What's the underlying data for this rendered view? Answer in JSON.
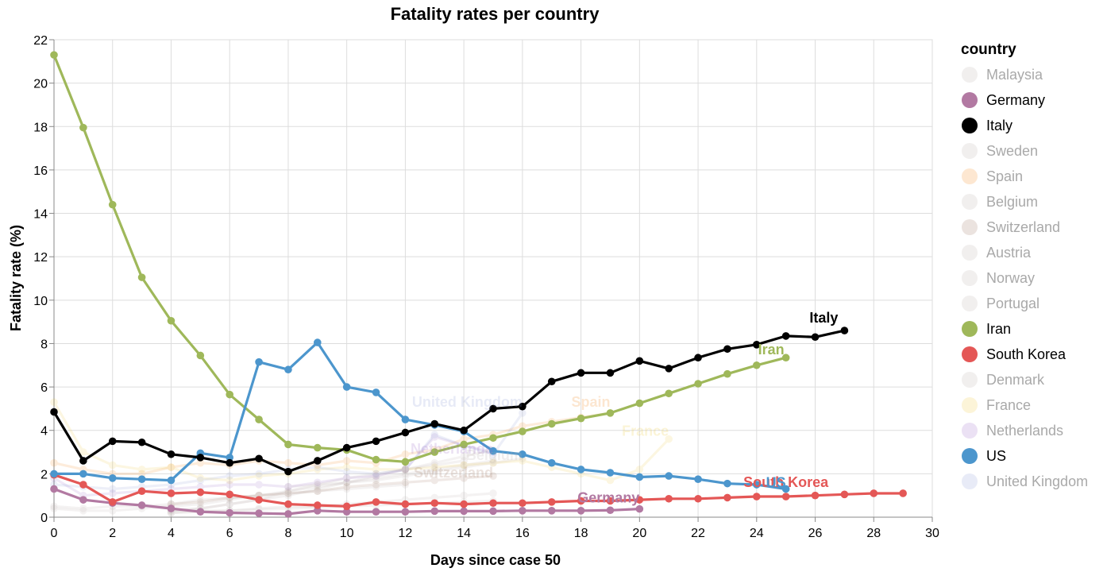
{
  "chart_data": {
    "type": "line",
    "title": "Fatality rates per country",
    "xlabel": "Days since case 50",
    "ylabel": "Fatality rate (%)",
    "xlim": [
      0,
      30
    ],
    "ylim": [
      0,
      22
    ],
    "x_ticks": [
      "0",
      "2",
      "4",
      "6",
      "8",
      "10",
      "12",
      "14",
      "16",
      "18",
      "20",
      "22",
      "24",
      "26",
      "28",
      "30"
    ],
    "y_ticks": [
      "0",
      "2",
      "4",
      "6",
      "8",
      "10",
      "12",
      "14",
      "16",
      "18",
      "20",
      "22"
    ],
    "grid": true,
    "legend_position": "right",
    "legend_title": "country",
    "series": [
      {
        "name": "Malaysia",
        "color": "#bab0ac",
        "highlighted": false,
        "x": [
          0,
          1,
          2,
          3,
          4,
          5,
          6,
          7,
          8,
          9,
          10,
          11,
          12
        ],
        "y": [
          0.5,
          0.4,
          0.5,
          0.5,
          0.6,
          0.8,
          0.9,
          1.0,
          1.1,
          1.2,
          1.3,
          1.4,
          1.5
        ]
      },
      {
        "name": "Germany",
        "color": "#b279a2",
        "highlighted": true,
        "label": "Germany",
        "x": [
          0,
          1,
          2,
          3,
          4,
          5,
          6,
          7,
          8,
          9,
          10,
          11,
          12,
          13,
          14,
          15,
          16,
          17,
          18,
          19,
          20
        ],
        "y": [
          1.3,
          0.8,
          0.65,
          0.55,
          0.4,
          0.25,
          0.2,
          0.18,
          0.15,
          0.3,
          0.25,
          0.25,
          0.25,
          0.28,
          0.28,
          0.28,
          0.3,
          0.3,
          0.3,
          0.32,
          0.38
        ]
      },
      {
        "name": "Italy",
        "color": "#000000",
        "highlighted": true,
        "label": "Italy",
        "x": [
          0,
          1,
          2,
          3,
          4,
          5,
          6,
          7,
          8,
          9,
          10,
          11,
          12,
          13,
          14,
          15,
          16,
          17,
          18,
          19,
          20,
          21,
          22,
          23,
          24,
          25,
          26,
          27
        ],
        "y": [
          4.85,
          2.6,
          3.5,
          3.45,
          2.9,
          2.75,
          2.5,
          2.7,
          2.1,
          2.6,
          3.2,
          3.5,
          3.9,
          4.3,
          4.0,
          5.0,
          5.1,
          6.25,
          6.65,
          6.65,
          7.2,
          6.85,
          7.35,
          7.75,
          7.95,
          8.35,
          8.3,
          8.6
        ]
      },
      {
        "name": "Sweden",
        "color": "#bab0ac",
        "highlighted": false,
        "x": [
          0,
          1,
          2,
          3,
          4,
          5,
          6,
          7,
          8,
          9,
          10,
          11,
          12,
          13,
          14,
          15
        ],
        "y": [
          0.4,
          0.3,
          0.3,
          0.4,
          0.5,
          0.6,
          0.8,
          1.0,
          1.2,
          1.4,
          1.6,
          1.8,
          2.0,
          2.2,
          2.4,
          2.6
        ]
      },
      {
        "name": "Spain",
        "color": "#f58518",
        "highlighted": false,
        "label": "Spain",
        "x": [
          0,
          1,
          2,
          3,
          4,
          5,
          6,
          7,
          8,
          9,
          10,
          11,
          12,
          13,
          14,
          15,
          16,
          17,
          18,
          19
        ],
        "y": [
          2.5,
          2.2,
          2.0,
          2.0,
          2.3,
          2.5,
          2.4,
          2.6,
          2.5,
          2.4,
          2.6,
          2.5,
          2.9,
          3.1,
          3.6,
          3.8,
          4.2,
          4.4,
          4.6,
          4.8
        ]
      },
      {
        "name": "Belgium",
        "color": "#bab0ac",
        "highlighted": false,
        "label": "Belgium",
        "x": [
          8,
          9,
          10,
          11,
          12,
          13,
          14,
          15,
          16
        ],
        "y": [
          1.4,
          1.5,
          1.6,
          1.7,
          1.9,
          2.1,
          2.3,
          2.5,
          2.7
        ]
      },
      {
        "name": "Switzerland",
        "color": "#9d755d",
        "highlighted": false,
        "label": "Switzerland",
        "x": [
          4,
          5,
          6,
          7,
          8,
          9,
          10,
          11,
          12,
          13,
          14,
          15
        ],
        "y": [
          0.6,
          0.7,
          0.9,
          1.0,
          1.1,
          1.2,
          1.4,
          1.5,
          1.6,
          1.7,
          1.8,
          1.9
        ]
      },
      {
        "name": "Austria",
        "color": "#bab0ac",
        "highlighted": false,
        "x": [
          4,
          5,
          6,
          7,
          8,
          9,
          10,
          11,
          12,
          13,
          14,
          15
        ],
        "y": [
          0.2,
          0.3,
          0.3,
          0.4,
          0.5,
          0.5,
          0.6,
          0.7,
          0.8,
          0.9,
          1.0,
          1.1
        ]
      },
      {
        "name": "Norway",
        "color": "#bab0ac",
        "highlighted": false,
        "x": [
          4,
          5,
          6,
          7,
          8,
          9,
          10,
          11,
          12,
          13,
          14,
          15
        ],
        "y": [
          0.2,
          0.25,
          0.3,
          0.35,
          0.4,
          0.45,
          0.5,
          0.55,
          0.6,
          0.65,
          0.7,
          0.75
        ]
      },
      {
        "name": "Portugal",
        "color": "#bab0ac",
        "highlighted": false,
        "x": [
          4,
          5,
          6,
          7,
          8,
          9,
          10,
          11,
          12,
          13,
          14
        ],
        "y": [
          0.3,
          0.4,
          0.6,
          0.8,
          1.2,
          1.5,
          1.8,
          2.0,
          2.2,
          2.4,
          2.6
        ]
      },
      {
        "name": "Iran",
        "color": "#9fb85a",
        "highlighted": true,
        "label": "Iran",
        "x": [
          0,
          1,
          2,
          3,
          4,
          5,
          6,
          7,
          8,
          9,
          10,
          11,
          12,
          13,
          14,
          15,
          16,
          17,
          18,
          19,
          20,
          21,
          22,
          23,
          24,
          25
        ],
        "y": [
          21.3,
          17.95,
          14.4,
          11.05,
          9.05,
          7.45,
          5.65,
          4.5,
          3.35,
          3.2,
          3.1,
          2.65,
          2.55,
          3.0,
          3.35,
          3.65,
          3.95,
          4.3,
          4.55,
          4.8,
          5.25,
          5.7,
          6.15,
          6.6,
          7.0,
          7.35
        ]
      },
      {
        "name": "South Korea",
        "color": "#e45756",
        "highlighted": true,
        "label": "South Korea",
        "x": [
          0,
          1,
          2,
          3,
          4,
          5,
          6,
          7,
          8,
          9,
          10,
          11,
          12,
          13,
          14,
          15,
          16,
          17,
          18,
          19,
          20,
          21,
          22,
          23,
          24,
          25,
          26,
          27,
          28,
          29
        ],
        "y": [
          1.95,
          1.5,
          0.7,
          1.2,
          1.1,
          1.15,
          1.05,
          0.8,
          0.6,
          0.55,
          0.5,
          0.7,
          0.6,
          0.65,
          0.6,
          0.65,
          0.65,
          0.7,
          0.75,
          0.75,
          0.8,
          0.85,
          0.85,
          0.9,
          0.95,
          0.95,
          1.0,
          1.05,
          1.1,
          1.1
        ]
      },
      {
        "name": "Denmark",
        "color": "#bab0ac",
        "highlighted": false,
        "x": [
          4,
          5,
          6,
          7,
          8,
          9,
          10,
          11,
          12,
          13,
          14,
          15
        ],
        "y": [
          0.3,
          0.4,
          0.6,
          0.8,
          1.0,
          1.3,
          1.6,
          1.9,
          2.2,
          2.5,
          2.8,
          3.1
        ]
      },
      {
        "name": "France",
        "color": "#eeca3b",
        "highlighted": false,
        "label": "France",
        "x": [
          0,
          1,
          2,
          3,
          4,
          5,
          6,
          7,
          8,
          9,
          10,
          11,
          12,
          13,
          14,
          15,
          16,
          17,
          18,
          19,
          20,
          21
        ],
        "y": [
          5.3,
          3.0,
          2.4,
          2.2,
          2.3,
          1.8,
          1.7,
          1.9,
          2.0,
          2.2,
          2.3,
          2.2,
          2.2,
          2.3,
          2.4,
          2.5,
          2.6,
          2.3,
          2.0,
          1.7,
          2.2,
          3.6
        ]
      },
      {
        "name": "Netherlands",
        "color": "#9c69c6",
        "highlighted": false,
        "label": "Netherlands",
        "x": [
          0,
          1,
          2,
          3,
          4,
          5,
          6,
          7,
          8,
          9,
          10,
          11,
          12,
          13,
          14,
          15
        ],
        "y": [
          1.8,
          1.0,
          1.1,
          1.2,
          1.3,
          1.4,
          1.5,
          1.5,
          1.4,
          1.6,
          1.8,
          1.9,
          2.2,
          3.7,
          3.3,
          3.0
        ]
      },
      {
        "name": "US",
        "color": "#4c96cd",
        "highlighted": true,
        "label": "US",
        "x": [
          0,
          1,
          2,
          3,
          4,
          5,
          6,
          7,
          8,
          9,
          10,
          11,
          12,
          13,
          14,
          15,
          16,
          17,
          18,
          19,
          20,
          21,
          22,
          23,
          24,
          25
        ],
        "y": [
          2.0,
          2.0,
          1.8,
          1.75,
          1.7,
          2.95,
          2.75,
          7.15,
          6.8,
          8.05,
          6.0,
          5.75,
          4.5,
          4.25,
          3.95,
          3.05,
          2.9,
          2.5,
          2.2,
          2.05,
          1.85,
          1.9,
          1.75,
          1.55,
          1.5,
          1.3
        ]
      },
      {
        "name": "United Kingdom",
        "color": "#8b9bd6",
        "highlighted": false,
        "label": "United Kingdom",
        "x": [
          0,
          1,
          2,
          3,
          4,
          5,
          6,
          7,
          8,
          9,
          10,
          11,
          12,
          13,
          14,
          15,
          16
        ],
        "y": [
          1.5,
          1.4,
          1.3,
          1.4,
          1.5,
          1.7,
          1.9,
          2.0,
          2.2,
          2.3,
          2.1,
          2.0,
          2.2,
          3.8,
          3.3,
          2.9,
          4.8
        ]
      }
    ]
  }
}
